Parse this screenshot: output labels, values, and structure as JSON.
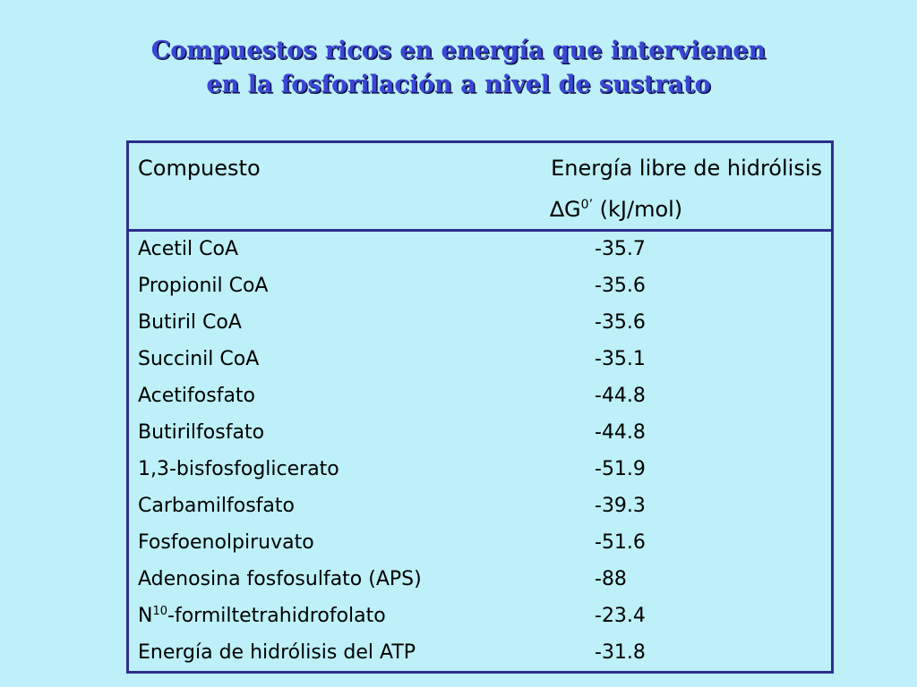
{
  "title": {
    "line1": "Compuestos ricos en energía que intervienen",
    "line2": "en la fosforilación a nivel de sustrato"
  },
  "table": {
    "header": {
      "compound": "Compuesto",
      "energy_line1": "Energía libre de hidrólisis",
      "energy_symbol": "∆G",
      "energy_sup": "0’",
      "energy_unit": " (kJ/mol)"
    },
    "rows": [
      {
        "name": "Acetil CoA",
        "value": "-35.7"
      },
      {
        "name": "Propionil CoA",
        "value": "-35.6"
      },
      {
        "name": "Butiril CoA",
        "value": "-35.6"
      },
      {
        "name": "Succinil CoA",
        "value": "-35.1"
      },
      {
        "name": "Acetifosfato",
        "value": "-44.8"
      },
      {
        "name": "Butirilfosfato",
        "value": "-44.8"
      },
      {
        "name": "1,3-bisfosfoglicerato",
        "value": "-51.9"
      },
      {
        "name": "Carbamilfosfato",
        "value": "-39.3"
      },
      {
        "name": "Fosfoenolpiruvato",
        "value": "-51.6"
      },
      {
        "name": "Adenosina fosfosulfato (APS)",
        "value": "-88"
      },
      {
        "name_prefix": "N",
        "name_sup": "10",
        "name_suffix": "-formiltetrahidrofolato",
        "value": "-23.4"
      },
      {
        "name": "Energía de hidrólisis del ATP",
        "value": "-31.8"
      }
    ]
  },
  "colors": {
    "background": "#bdf0f8",
    "title": "#3b47d6",
    "border": "#2d2e8c"
  }
}
